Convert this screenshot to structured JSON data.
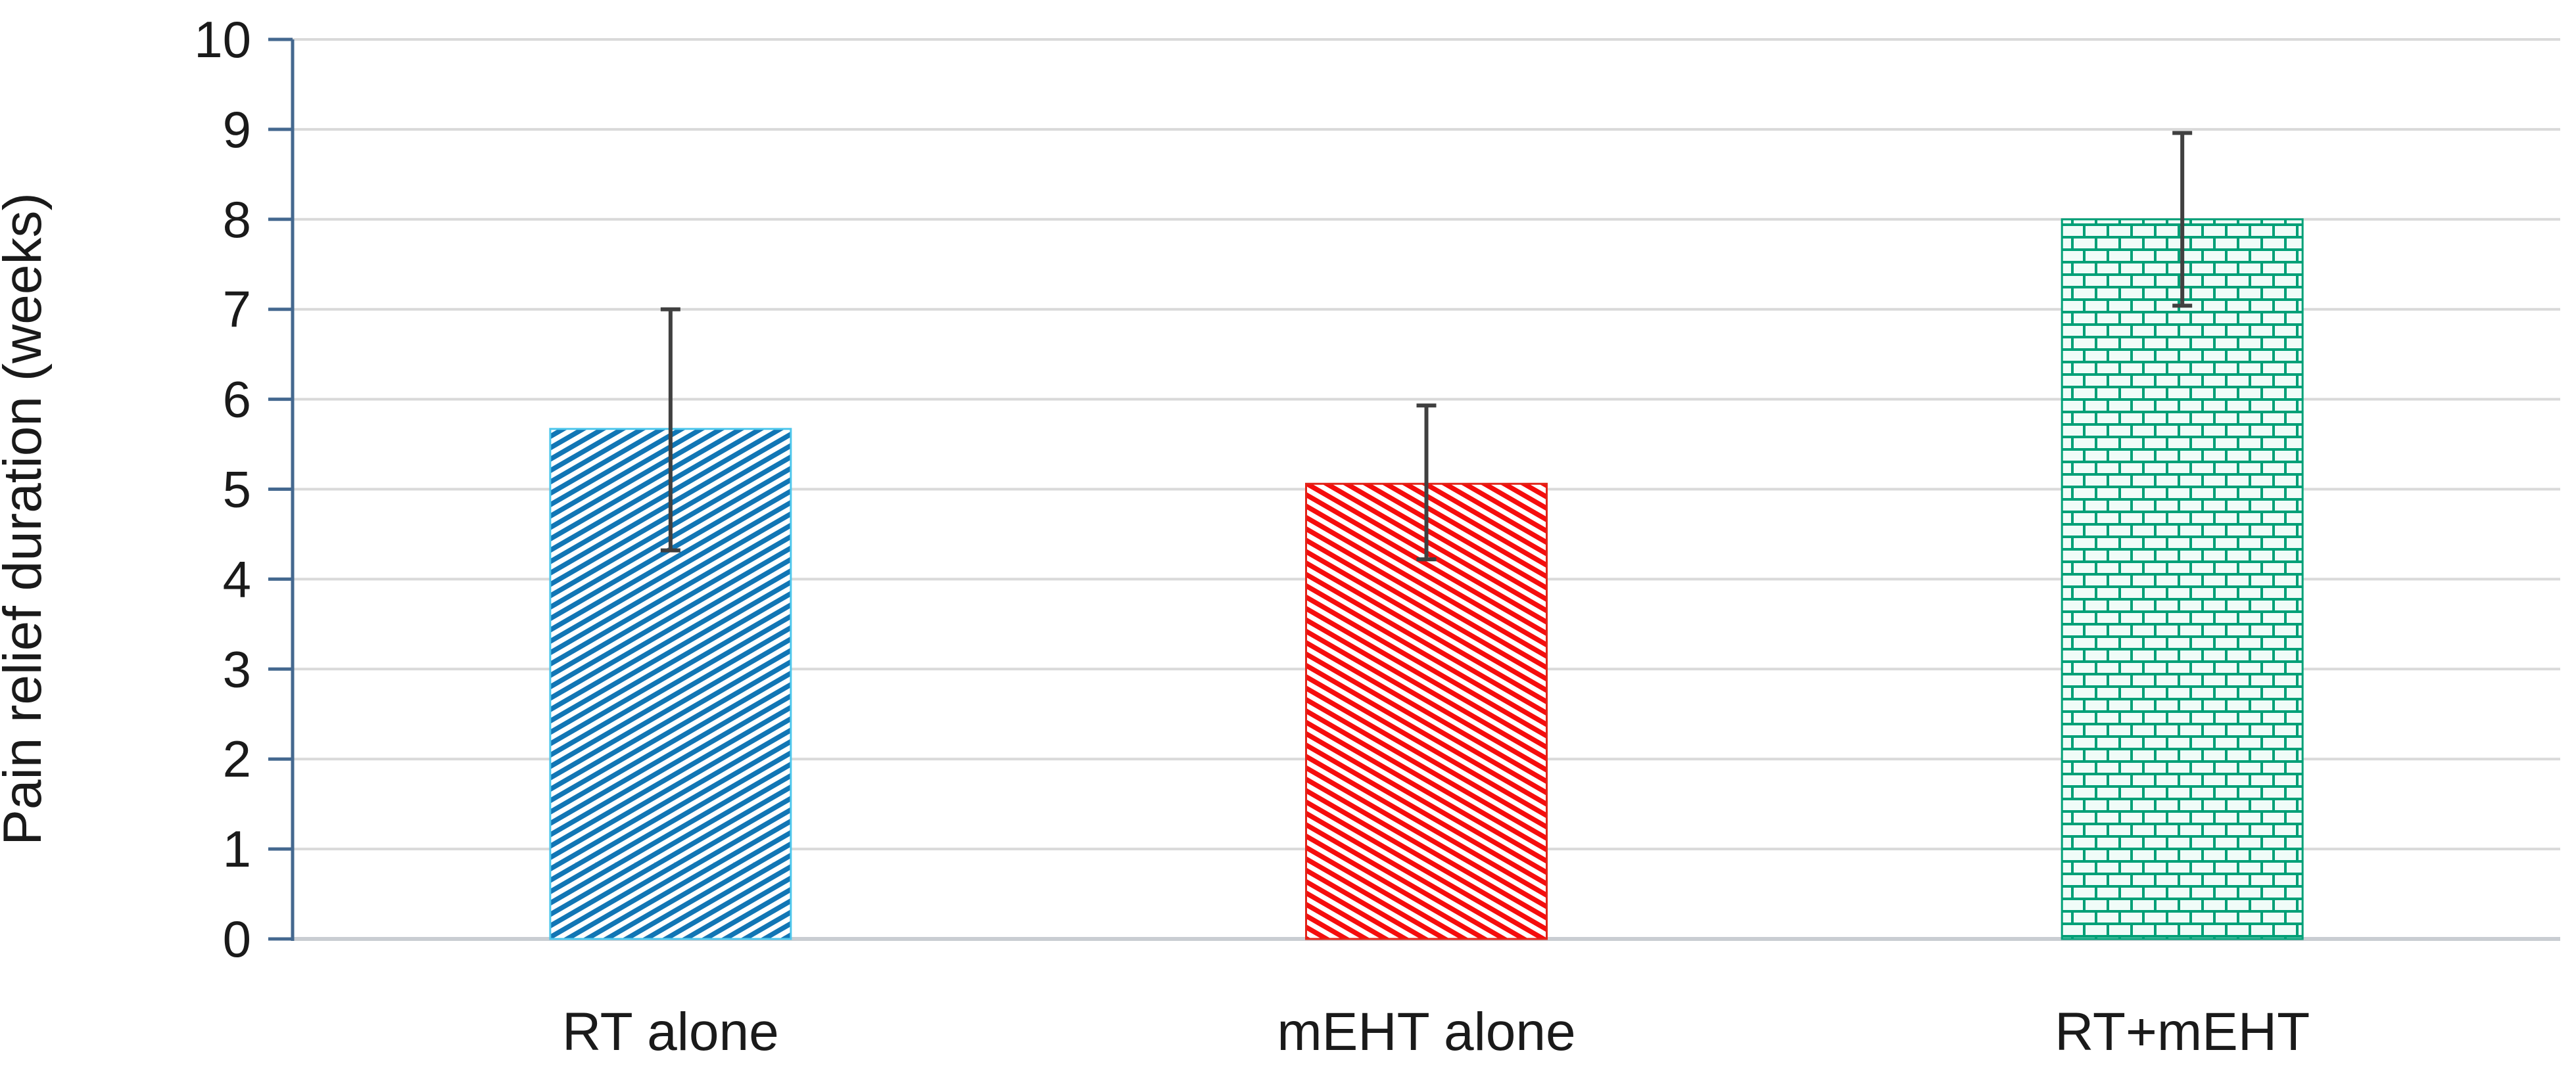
{
  "chart_data": {
    "type": "bar",
    "title": "",
    "xlabel": "",
    "ylabel": "Pain relief duration (weeks)",
    "categories": [
      "RT alone",
      "mEHT alone",
      "RT+mEHT"
    ],
    "values": [
      5.67,
      5.06,
      8.0
    ],
    "error_bars": {
      "upper": [
        7.0,
        5.93,
        8.96
      ],
      "lower": [
        4.32,
        4.22,
        7.04
      ]
    },
    "ylim": [
      0,
      10
    ],
    "yticks": [
      0,
      1,
      2,
      3,
      4,
      5,
      6,
      7,
      8,
      9,
      10
    ],
    "grid": true,
    "legend": false,
    "series_styles": [
      {
        "name": "RT alone",
        "pattern": "diagonal-up",
        "color": "#1176B5",
        "border": "#4FC7EC",
        "background": "#ffffff"
      },
      {
        "name": "mEHT alone",
        "pattern": "diagonal-down",
        "color": "#F50D0D",
        "border": "#E0251A",
        "background": "#ffffff"
      },
      {
        "name": "RT+mEHT",
        "pattern": "brick",
        "color": "#00A077",
        "border": "#00A077",
        "background": "#F0FCF8"
      }
    ],
    "colors": {
      "gridline": "#D9D9D9",
      "baseline": "#C9CDD2",
      "axis_line": "#44688F",
      "error_bar": "#404040",
      "text": "#1A1A1A"
    }
  }
}
